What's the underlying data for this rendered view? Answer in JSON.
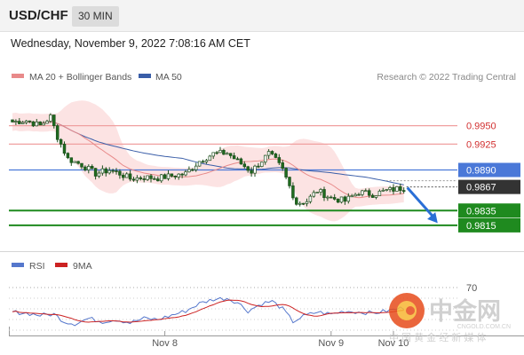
{
  "header": {
    "symbol": "USD/CHF",
    "interval": "30 MIN",
    "datetime": "Wednesday, November 9, 2022 7:08:16 AM CET"
  },
  "colors": {
    "ma20": "#e88a8a",
    "ma50": "#3a5ea8",
    "bollinger_fill": "#fbdcdc",
    "resistance_line": "#f0a0a0",
    "pivot_line": "#4a78d8",
    "support_line": "#1f8a1f",
    "candle_up": "#ffffff",
    "candle_down": "#1e6b1e",
    "current_price_box": "#333333",
    "arrow": "#2a6fd6",
    "rsi": "#5577cc",
    "rsi_ma": "#cc2222"
  },
  "chart_data": [
    {
      "type": "candlestick",
      "title": "",
      "legend": [
        {
          "name": "MA 20 + Bollinger Bands",
          "color": "#e88a8a"
        },
        {
          "name": "MA 50",
          "color": "#3a5ea8"
        }
      ],
      "credit": "Research © 2022 Trading Central",
      "ylim": [
        0.978,
        1.0
      ],
      "x_ticks": [
        {
          "index": 44,
          "label": "Nov 8"
        },
        {
          "index": 92,
          "label": "Nov 9"
        },
        {
          "index": 110,
          "label": "Nov 10"
        }
      ],
      "levels": [
        {
          "value": 0.995,
          "label": "0.9950",
          "kind": "resistance"
        },
        {
          "value": 0.9925,
          "label": "0.9925",
          "kind": "resistance"
        },
        {
          "value": 0.989,
          "label": "0.9890",
          "kind": "pivot"
        },
        {
          "value": 0.9835,
          "label": "0.9835",
          "kind": "support"
        },
        {
          "value": 0.9815,
          "label": "0.9815",
          "kind": "support"
        }
      ],
      "current_price": {
        "value": 0.9867,
        "label": "0.9867"
      },
      "forecast_arrow": {
        "from": {
          "index": 113,
          "value": 0.9866
        },
        "to": {
          "index": 122,
          "value": 0.9818
        }
      },
      "anchors": [
        [
          0,
          0.9955
        ],
        [
          4,
          0.9957
        ],
        [
          8,
          0.995
        ],
        [
          11,
          0.9962
        ],
        [
          13,
          0.9935
        ],
        [
          16,
          0.9905
        ],
        [
          20,
          0.9897
        ],
        [
          24,
          0.9885
        ],
        [
          28,
          0.989
        ],
        [
          31,
          0.9885
        ],
        [
          34,
          0.9878
        ],
        [
          38,
          0.988
        ],
        [
          42,
          0.9879
        ],
        [
          46,
          0.9882
        ],
        [
          50,
          0.9885
        ],
        [
          54,
          0.9902
        ],
        [
          58,
          0.9912
        ],
        [
          62,
          0.9913
        ],
        [
          65,
          0.9902
        ],
        [
          69,
          0.9888
        ],
        [
          71,
          0.9898
        ],
        [
          74,
          0.9912
        ],
        [
          76,
          0.9903
        ],
        [
          78,
          0.989
        ],
        [
          80,
          0.9868
        ],
        [
          82,
          0.9845
        ],
        [
          85,
          0.9848
        ],
        [
          88,
          0.9862
        ],
        [
          92,
          0.9852
        ],
        [
          96,
          0.9848
        ],
        [
          100,
          0.986
        ],
        [
          104,
          0.9857
        ],
        [
          108,
          0.9862
        ],
        [
          113,
          0.9866
        ]
      ]
    },
    {
      "type": "line",
      "title": "",
      "legend": [
        {
          "name": "RSI",
          "color": "#5577cc"
        },
        {
          "name": "9MA",
          "color": "#cc2222"
        }
      ],
      "ylim": [
        25,
        80
      ],
      "levels": [
        {
          "value": 70,
          "label": "70"
        }
      ],
      "anchors": [
        [
          0,
          47
        ],
        [
          4,
          46
        ],
        [
          8,
          44
        ],
        [
          12,
          45
        ],
        [
          15,
          38
        ],
        [
          18,
          36
        ],
        [
          22,
          41
        ],
        [
          26,
          38
        ],
        [
          30,
          40
        ],
        [
          34,
          37
        ],
        [
          38,
          41
        ],
        [
          42,
          40
        ],
        [
          46,
          44
        ],
        [
          50,
          48
        ],
        [
          54,
          55
        ],
        [
          58,
          59
        ],
        [
          62,
          60
        ],
        [
          65,
          56
        ],
        [
          68,
          48
        ],
        [
          72,
          55
        ],
        [
          75,
          57
        ],
        [
          78,
          50
        ],
        [
          81,
          38
        ],
        [
          84,
          43
        ],
        [
          88,
          47
        ],
        [
          92,
          45
        ],
        [
          96,
          48
        ],
        [
          100,
          47
        ],
        [
          104,
          46
        ],
        [
          108,
          48
        ],
        [
          113,
          51
        ]
      ]
    }
  ],
  "watermark": {
    "name": "中金网",
    "sub": "中 国 黄 金 经 新 媒 体",
    "url": "CNGOLD.COM.CN"
  }
}
